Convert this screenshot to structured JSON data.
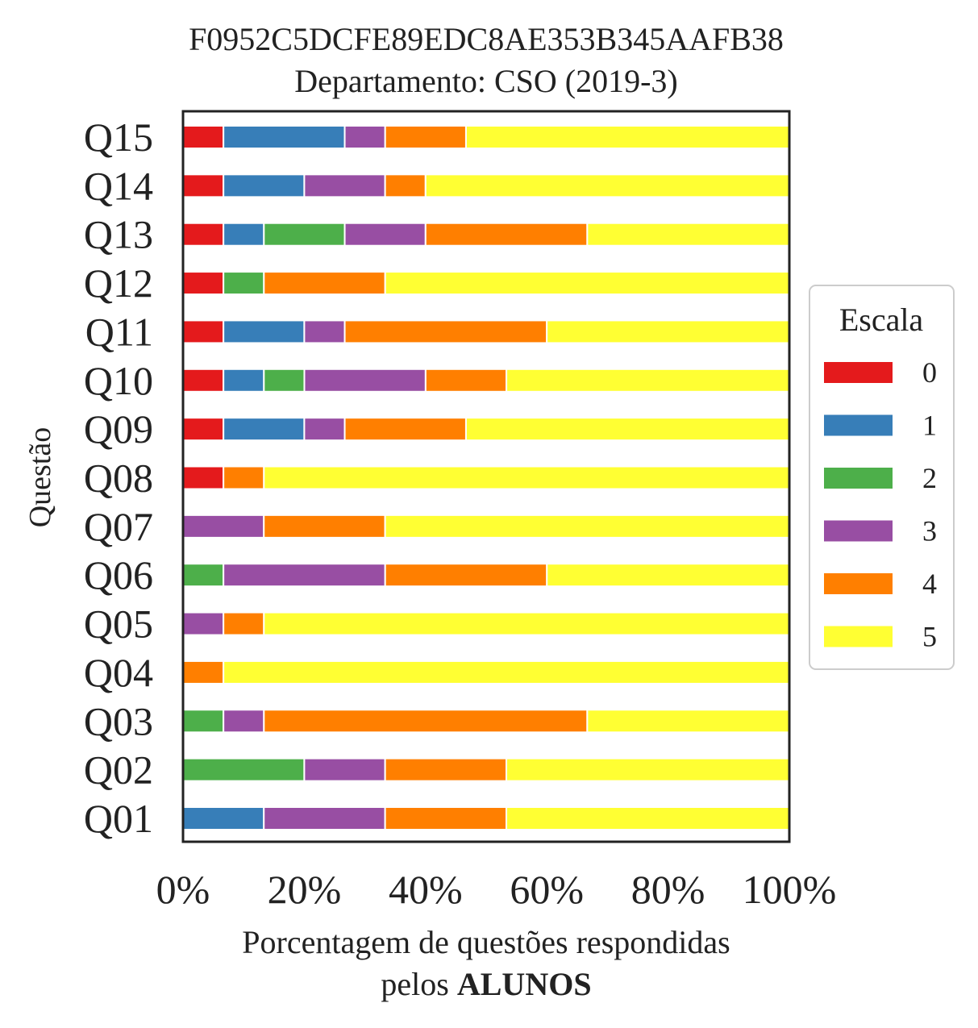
{
  "chart_data": {
    "type": "bar",
    "orientation": "horizontal",
    "stacked": true,
    "title": "F0952C5DCFE89EDC8AE353B345AAFB38",
    "subtitle": "Departamento: CSO (2019-3)",
    "xlabel_line1": "Porcentagem de questões respondidas",
    "xlabel_line2_prefix": "pelos ",
    "xlabel_line2_bold": "ALUNOS",
    "ylabel": "Questão",
    "xlim": [
      0,
      100
    ],
    "x_ticks": [
      "0%",
      "20%",
      "40%",
      "60%",
      "80%",
      "100%"
    ],
    "x_tick_values": [
      0,
      20,
      40,
      60,
      80,
      100
    ],
    "grid": false,
    "legend_position": "right",
    "legend_title": "Escala",
    "categories": [
      "Q01",
      "Q02",
      "Q03",
      "Q04",
      "Q05",
      "Q06",
      "Q07",
      "Q08",
      "Q09",
      "Q10",
      "Q11",
      "Q12",
      "Q13",
      "Q14",
      "Q15"
    ],
    "series": [
      {
        "name": "0",
        "color": "#e41a1c",
        "values": [
          0,
          0,
          0,
          0,
          0,
          0,
          0,
          6.67,
          6.67,
          6.67,
          6.67,
          6.67,
          6.67,
          6.67,
          6.67
        ]
      },
      {
        "name": "1",
        "color": "#377eb8",
        "values": [
          13.33,
          0,
          0,
          0,
          0,
          0,
          0,
          0,
          13.33,
          6.67,
          13.33,
          0,
          6.67,
          13.33,
          20
        ]
      },
      {
        "name": "2",
        "color": "#4daf4a",
        "values": [
          0,
          20,
          6.67,
          0,
          0,
          6.67,
          0,
          0,
          0,
          6.67,
          0,
          6.67,
          13.33,
          0,
          0
        ]
      },
      {
        "name": "3",
        "color": "#984ea3",
        "values": [
          20,
          13.33,
          6.67,
          0,
          6.67,
          26.67,
          13.33,
          0,
          6.67,
          20,
          6.67,
          0,
          13.33,
          13.33,
          6.67
        ]
      },
      {
        "name": "4",
        "color": "#ff7f00",
        "values": [
          20,
          20,
          53.33,
          6.67,
          6.67,
          26.67,
          20,
          6.67,
          20,
          13.33,
          33.33,
          20,
          26.67,
          6.67,
          13.33
        ]
      },
      {
        "name": "5",
        "color": "#ffff33",
        "values": [
          46.67,
          46.67,
          33.33,
          93.33,
          86.67,
          40,
          66.67,
          86.67,
          53.33,
          46.67,
          40,
          66.67,
          33.33,
          60,
          53.33
        ]
      }
    ]
  }
}
